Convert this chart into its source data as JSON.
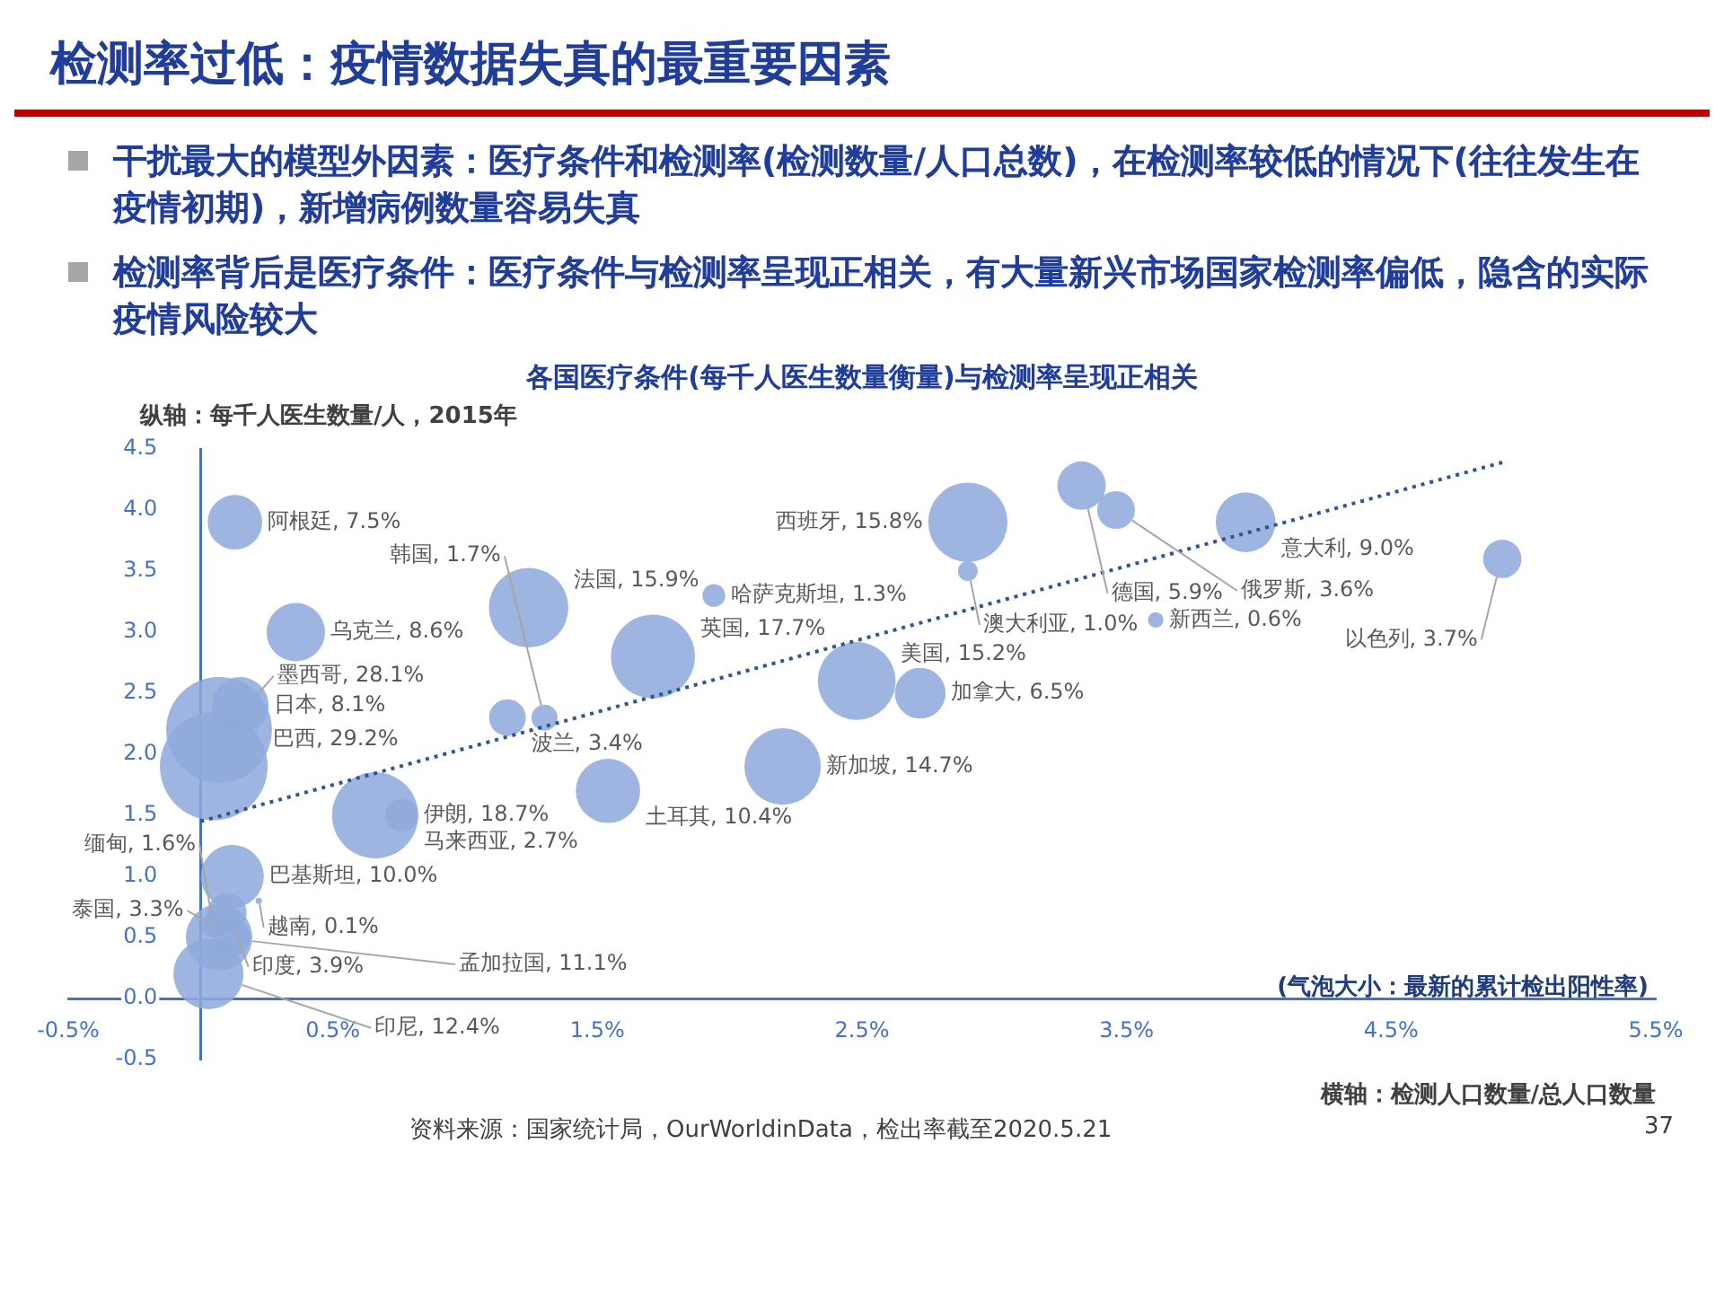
{
  "chart_data": {
    "type": "bubble",
    "title": "检测率过低：疫情数据失真的最重要因素",
    "subtitle": "各国医疗条件(每千人医生数量衡量)与检测率呈现正相关",
    "xlabel": "横轴：检测人口数量/总人口数量",
    "ylabel": "纵轴：每千人医生数量/人，2015年",
    "annotations": [
      "干扰最大的模型外因素：医疗条件和检测率(检测数量/人口总数)，在检测率较低的情况下(往往发生在疫情初期)，新增病例数量容易失真",
      "检测率背后是医疗条件：医疗条件与检测率呈现正相关，有大量新兴市场国家检测率偏低，隐含的实际疫情风险较大",
      "(气泡大小：最新的累计检出阳性率)",
      "资料来源：国家统计局，OurWorldinData，检出率截至2020.5.21",
      "37"
    ],
    "xlim": [
      -0.5,
      5.5
    ],
    "xticks": [
      {
        "value": -0.5,
        "label": "-0.5%"
      },
      {
        "value": 0.5,
        "label": "0.5%"
      },
      {
        "value": 1.5,
        "label": "1.5%"
      },
      {
        "value": 2.5,
        "label": "2.5%"
      },
      {
        "value": 3.5,
        "label": "3.5%"
      },
      {
        "value": 4.5,
        "label": "4.5%"
      },
      {
        "value": 5.5,
        "label": "5.5%"
      }
    ],
    "ylim": [
      -0.5,
      4.5
    ],
    "yticks": [
      {
        "value": -0.5,
        "label": "-0.5"
      },
      {
        "value": 0,
        "label": "0.0"
      },
      {
        "value": 0.5,
        "label": "0.5"
      },
      {
        "value": 1,
        "label": "1.0"
      },
      {
        "value": 1.5,
        "label": "1.5"
      },
      {
        "value": 2,
        "label": "2.0"
      },
      {
        "value": 2.5,
        "label": "2.5"
      },
      {
        "value": 3,
        "label": "3.0"
      },
      {
        "value": 3.5,
        "label": "3.5"
      },
      {
        "value": 4,
        "label": "4.0"
      },
      {
        "value": 4.5,
        "label": "4.5"
      }
    ],
    "series": [
      {
        "color": "#8eaadb",
        "x": [
          0.13,
          0.36,
          0.15,
          0.07,
          0.05,
          0.66,
          0.76,
          0.12,
          0.1,
          0.22,
          0.05,
          0.07,
          0.12,
          0.03,
          1.24,
          1.71,
          1.16,
          1.3,
          1.54,
          2.2,
          2.48,
          2.72,
          1.94,
          2.9,
          3.33,
          3.46,
          3.95,
          4.92,
          2.9,
          3.61
        ],
        "values": [
          3.9,
          3.0,
          2.4,
          2.2,
          1.9,
          1.5,
          1.5,
          1.0,
          0.7,
          0.8,
          0.6,
          0.5,
          0.5,
          0.2,
          3.2,
          2.8,
          2.3,
          2.3,
          1.7,
          1.9,
          2.6,
          2.5,
          3.3,
          3.9,
          4.2,
          4.0,
          3.9,
          3.6,
          3.5,
          3.1
        ],
        "sizes": [
          7.5,
          8.6,
          8.1,
          28.1,
          29.2,
          18.7,
          2.7,
          10.0,
          3.9,
          0.1,
          1.6,
          11.1,
          3.3,
          12.4,
          15.9,
          17.7,
          3.4,
          1.7,
          10.4,
          14.7,
          15.2,
          6.5,
          1.3,
          15.8,
          5.9,
          3.6,
          9.0,
          3.7,
          1.0,
          0.6
        ],
        "value_labels": [
          "阿根廷, 7.5%",
          "乌克兰, 8.6%",
          "日本, 8.1%",
          "墨西哥, 28.1%",
          "巴西, 29.2%",
          "伊朗, 18.7%",
          "马来西亚, 2.7%",
          "巴基斯坦, 10.0%",
          "印度, 3.9%",
          "越南, 0.1%",
          "缅甸, 1.6%",
          "孟加拉国, 11.1%",
          "泰国, 3.3%",
          "印尼, 12.4%",
          "法国, 15.9%",
          "英国, 17.7%",
          "波兰, 3.4%",
          "韩国, 1.7%",
          "土耳其, 10.4%",
          "新加坡, 14.7%",
          "美国, 15.2%",
          "加拿大, 6.5%",
          "哈萨克斯坦, 1.3%",
          "西班牙, 15.8%",
          "德国, 5.9%",
          "俄罗斯, 3.6%",
          "意大利, 9.0%",
          "以色列, 3.7%",
          "澳大利亚, 1.0%",
          "新西兰, 0.6%"
        ]
      },
      {
        "type": "line",
        "color": "#2f5597",
        "x": [
          0,
          4.92
        ],
        "values": [
          1.45,
          4.39
        ],
        "line_style": "dotted",
        "marker": "none"
      }
    ]
  }
}
